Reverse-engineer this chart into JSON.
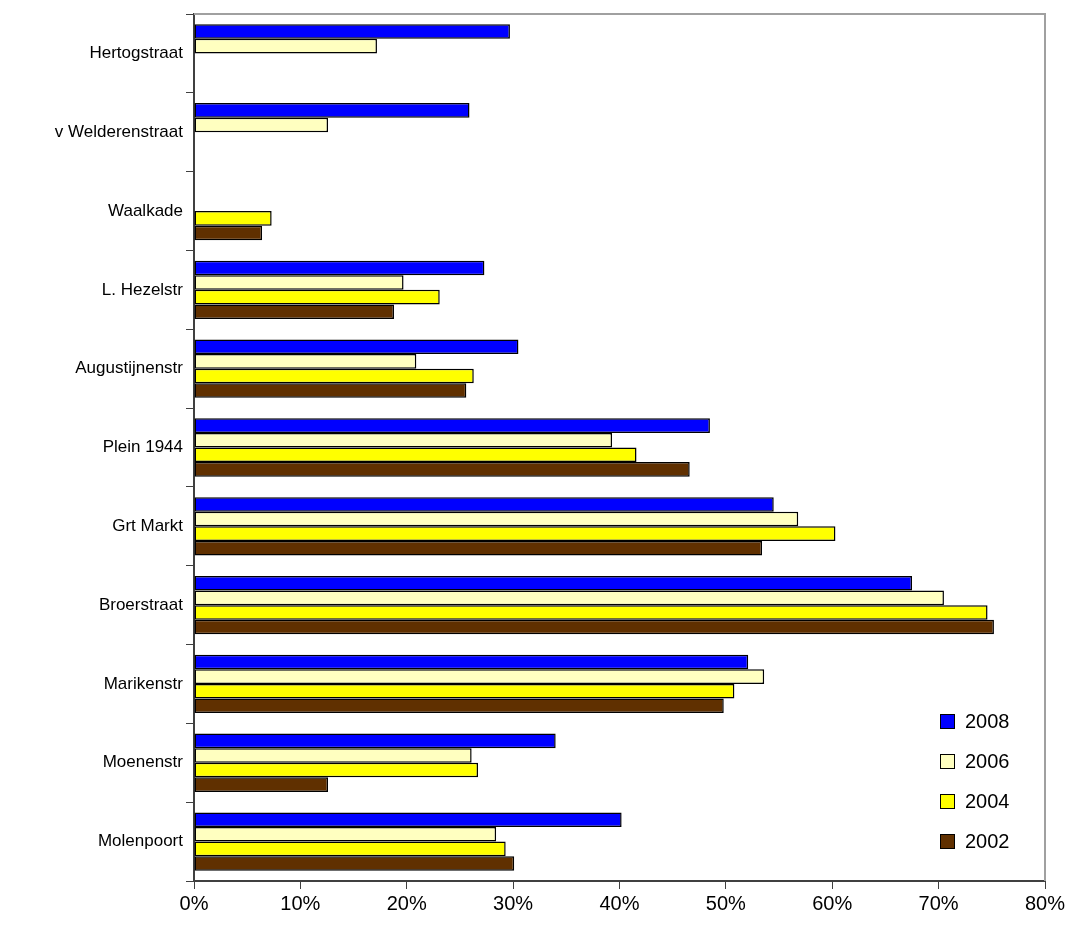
{
  "chart_data": {
    "type": "bar",
    "orientation": "horizontal",
    "categories": [
      "Hertogstraat",
      "v Welderenstraat",
      "Waalkade",
      "L. Hezelstr",
      "Augustijnenstr",
      "Plein 1944",
      "Grt Markt",
      "Broerstraat",
      "Marikenstr",
      "Moenenstr",
      "Molenpoort"
    ],
    "series": [
      {
        "name": "2008",
        "color": "#0000ff",
        "values": [
          29.7,
          25.9,
          null,
          27.3,
          30.5,
          48.5,
          54.5,
          67.5,
          52.1,
          34.0,
          40.2
        ]
      },
      {
        "name": "2006",
        "color": "#ffffc0",
        "values": [
          17.2,
          12.6,
          null,
          19.7,
          20.9,
          39.3,
          56.8,
          70.5,
          53.6,
          26.1,
          28.4
        ]
      },
      {
        "name": "2004",
        "color": "#ffff00",
        "values": [
          null,
          null,
          7.3,
          23.1,
          26.3,
          41.6,
          60.3,
          74.6,
          50.8,
          26.7,
          29.3
        ]
      },
      {
        "name": "2002",
        "color": "#603000",
        "values": [
          null,
          null,
          6.4,
          18.8,
          25.6,
          46.6,
          53.4,
          75.2,
          49.8,
          12.6,
          30.1
        ]
      }
    ],
    "xlim": [
      0,
      80
    ],
    "xticks": [
      {
        "value": 0,
        "label": "0%"
      },
      {
        "value": 10,
        "label": "10%"
      },
      {
        "value": 20,
        "label": "20%"
      },
      {
        "value": 30,
        "label": "30%"
      },
      {
        "value": 40,
        "label": "40%"
      },
      {
        "value": 50,
        "label": "50%"
      },
      {
        "value": 60,
        "label": "60%"
      },
      {
        "value": 70,
        "label": "70%"
      },
      {
        "value": 80,
        "label": "80%"
      }
    ],
    "grid": false,
    "legend": "bottom right"
  }
}
